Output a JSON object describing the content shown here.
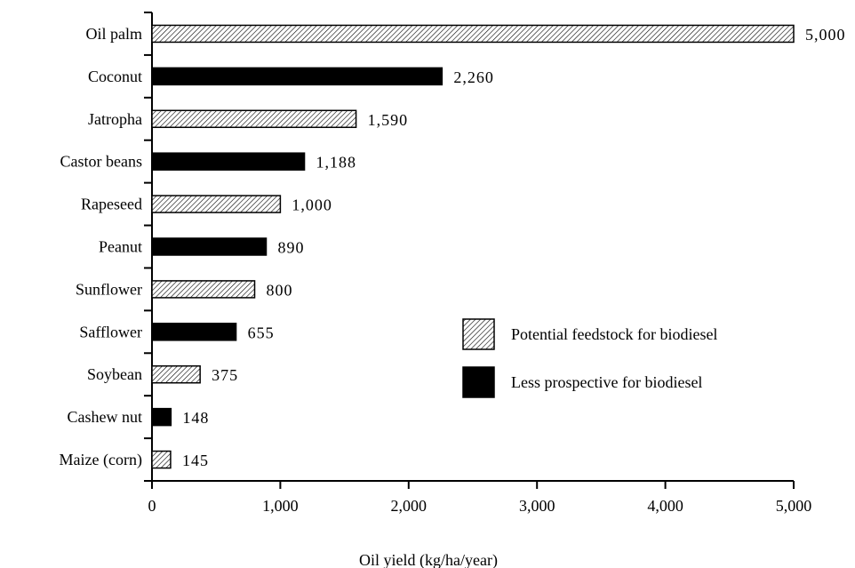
{
  "chart_data": {
    "type": "bar",
    "orientation": "horizontal",
    "categories": [
      "Oil palm",
      "Coconut",
      "Jatropha",
      "Castor beans",
      "Rapeseed",
      "Peanut",
      "Sunflower",
      "Safflower",
      "Soybean",
      "Cashew nut",
      "Maize (corn)"
    ],
    "values": [
      5000,
      2260,
      1590,
      1188,
      1000,
      890,
      800,
      655,
      375,
      148,
      145
    ],
    "value_labels": [
      "5,000",
      "2,260",
      "1,590",
      "1,188",
      "1,000",
      "890",
      "800",
      "655",
      "375",
      "148",
      "145"
    ],
    "groups": [
      "potential",
      "less",
      "potential",
      "less",
      "potential",
      "less",
      "potential",
      "less",
      "potential",
      "less",
      "potential"
    ],
    "xlabel": "Oil yield (kg/ha/year)",
    "ylabel": "",
    "xlim": [
      0,
      5000
    ],
    "x_ticks": [
      0,
      1000,
      2000,
      3000,
      4000,
      5000
    ],
    "x_tick_labels": [
      "0",
      "1,000",
      "2,000",
      "3,000",
      "4,000",
      "5,000"
    ],
    "grid": false,
    "legend_position": "right",
    "legend": [
      {
        "key": "potential",
        "label": "Potential feedstock for biodiesel",
        "fill": "hatched"
      },
      {
        "key": "less",
        "label": "Less prospective for biodiesel",
        "fill": "solid"
      }
    ],
    "colors": {
      "solid": "#000000",
      "hatch_line": "#000000",
      "hatch_bg": "#ffffff"
    }
  }
}
